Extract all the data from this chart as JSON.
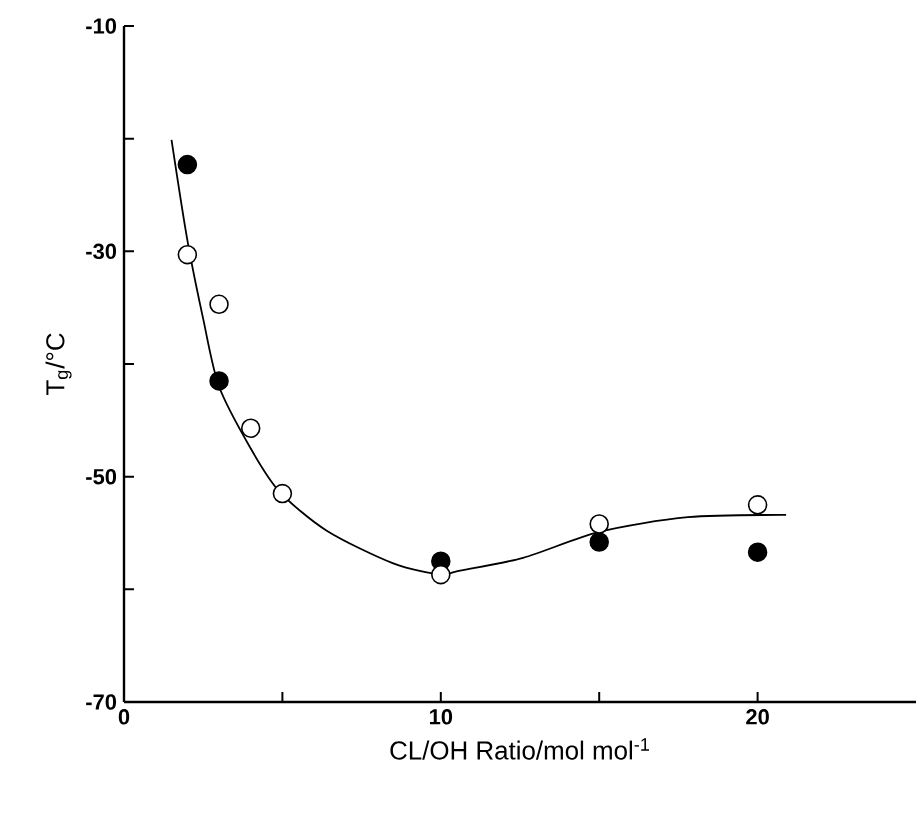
{
  "chart_data": {
    "type": "scatter",
    "xlabel": "CL/OH Ratio/mol mol$^{-1}$",
    "ylabel": "T$_{g}$/°C",
    "xlim": [
      0,
      25
    ],
    "ylim": [
      -70,
      -10
    ],
    "xticks": [
      0,
      {
        "value": 5,
        "label": null
      },
      10,
      {
        "value": 15,
        "label": null
      },
      20
    ],
    "yticks": [
      -70,
      {
        "value": -60,
        "label": null
      },
      -50,
      {
        "value": -40,
        "label": null
      },
      -30,
      {
        "value": -20,
        "label": null
      },
      -10
    ],
    "marker": "circle",
    "series": [
      {
        "color": "#000000",
        "x": [
          2,
          3,
          10,
          15,
          20
        ],
        "values": [
          -22.3,
          -41.5,
          -57.5,
          -55.8,
          -56.7
        ]
      },
      {
        "color": "#ffffff",
        "x": [
          2,
          3,
          4,
          5,
          10,
          15,
          20
        ],
        "values": [
          -30.3,
          -34.7,
          -45.7,
          -51.5,
          -58.7,
          -54.2,
          -52.5
        ]
      },
      {
        "type": "line",
        "color": "#000000",
        "marker": "none",
        "x": [
          1.5,
          2,
          2.5,
          3,
          4,
          4.9,
          6.4,
          8.5,
          10,
          10.5,
          12.6,
          15,
          17.8,
          20.9
        ],
        "values": [
          -20.1,
          -29,
          -36,
          -42,
          -47.5,
          -51.3,
          -54.8,
          -57.7,
          -58.7,
          -58.4,
          -57.2,
          -54.9,
          -53.6,
          -53.4
        ]
      }
    ]
  }
}
